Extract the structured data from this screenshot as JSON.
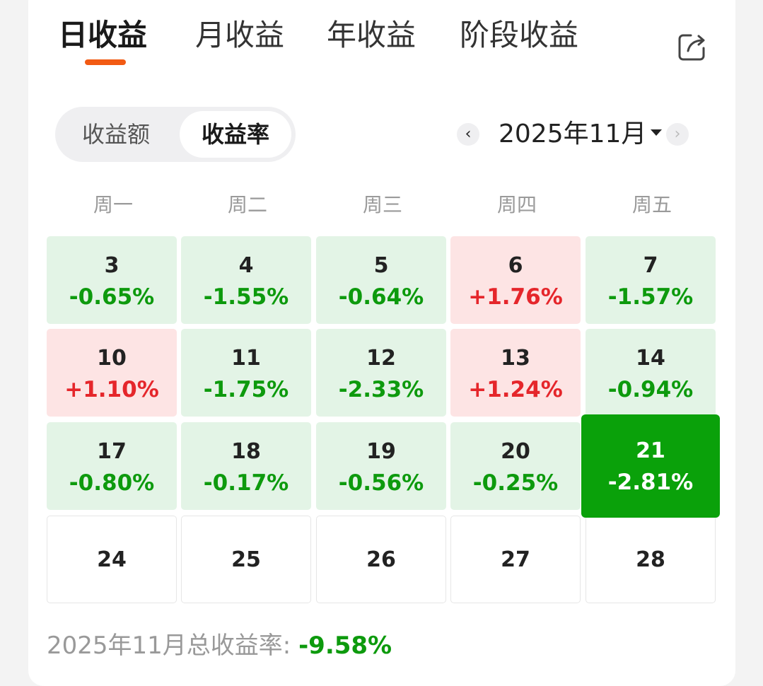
{
  "tabs": [
    {
      "label": "日收益",
      "active": true
    },
    {
      "label": "月收益",
      "active": false
    },
    {
      "label": "年收益",
      "active": false
    },
    {
      "label": "阶段收益",
      "active": false
    }
  ],
  "share_icon": "share-export-icon",
  "segment": {
    "option_amount": "收益额",
    "option_rate": "收益率",
    "selected": "收益率"
  },
  "month_nav": {
    "label": "2025年11月",
    "prev_icon": "chevron-left-icon",
    "next_icon": "chevron-right-icon",
    "dropdown_icon": "caret-down-icon"
  },
  "weekdays": [
    "周一",
    "周二",
    "周三",
    "周四",
    "周五"
  ],
  "weeks": [
    [
      {
        "day": "3",
        "pct": "-0.65%",
        "dir": "down"
      },
      {
        "day": "4",
        "pct": "-1.55%",
        "dir": "down"
      },
      {
        "day": "5",
        "pct": "-0.64%",
        "dir": "down"
      },
      {
        "day": "6",
        "pct": "+1.76%",
        "dir": "up"
      },
      {
        "day": "7",
        "pct": "-1.57%",
        "dir": "down"
      }
    ],
    [
      {
        "day": "10",
        "pct": "+1.10%",
        "dir": "up"
      },
      {
        "day": "11",
        "pct": "-1.75%",
        "dir": "down"
      },
      {
        "day": "12",
        "pct": "-2.33%",
        "dir": "down"
      },
      {
        "day": "13",
        "pct": "+1.24%",
        "dir": "up"
      },
      {
        "day": "14",
        "pct": "-0.94%",
        "dir": "down"
      }
    ],
    [
      {
        "day": "17",
        "pct": "-0.80%",
        "dir": "down"
      },
      {
        "day": "18",
        "pct": "-0.17%",
        "dir": "down"
      },
      {
        "day": "19",
        "pct": "-0.56%",
        "dir": "down"
      },
      {
        "day": "20",
        "pct": "-0.25%",
        "dir": "down"
      },
      {
        "day": "21",
        "pct": "-2.81%",
        "dir": "selected"
      }
    ],
    [
      {
        "day": "24",
        "pct": "",
        "dir": "empty"
      },
      {
        "day": "25",
        "pct": "",
        "dir": "empty"
      },
      {
        "day": "26",
        "pct": "",
        "dir": "empty"
      },
      {
        "day": "27",
        "pct": "",
        "dir": "empty"
      },
      {
        "day": "28",
        "pct": "",
        "dir": "empty"
      }
    ]
  ],
  "colors": {
    "accent": "#f25a13",
    "down": "#0d9a0d",
    "up": "#e5262b",
    "down_bg": "#e3f4e6",
    "up_bg": "#fde4e4",
    "selected_bg": "#0aa10a"
  },
  "summary": {
    "label": "2025年11月总收益率: ",
    "value": "-9.58%"
  }
}
